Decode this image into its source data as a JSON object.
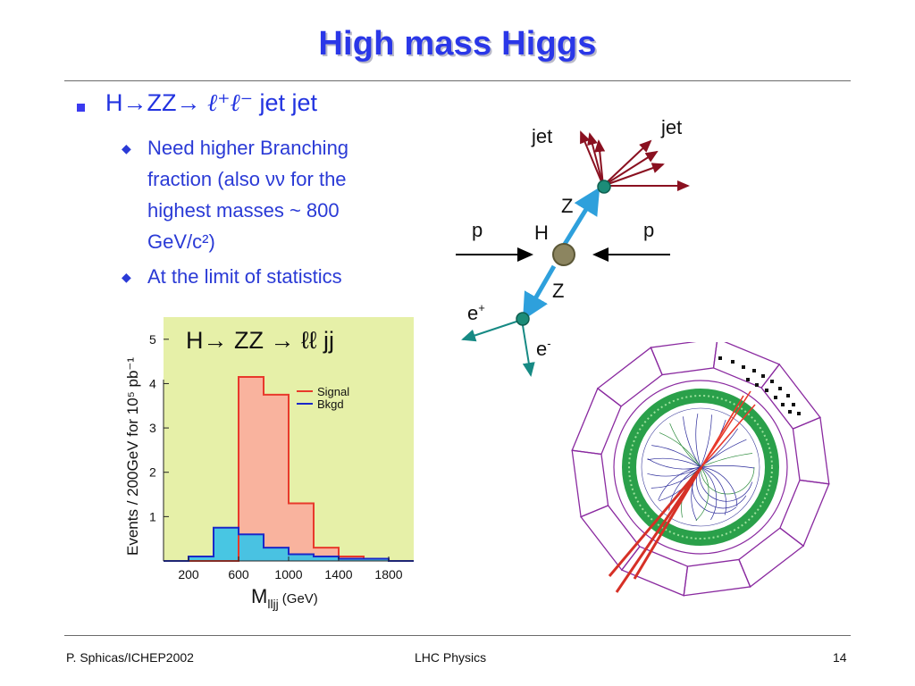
{
  "slide": {
    "title": "High mass Higgs",
    "main_bullet": {
      "prefix": "H",
      "arrow1": "→",
      "zz": "ZZ",
      "arrow2": "→",
      "leptons": "ℓ⁺ℓ⁻",
      "suffix": " jet jet"
    },
    "sub_bullets": [
      {
        "lines": [
          "Need higher Branching",
          "fraction (also νν for the",
          "highest masses ~ 800",
          "GeV/c²)"
        ]
      },
      {
        "lines": [
          "At the limit of statistics"
        ]
      }
    ]
  },
  "feynman": {
    "jet_left": "jet",
    "jet_right": "jet",
    "z_upper": "Z",
    "z_lower": "Z",
    "p_left": "p",
    "p_right": "p",
    "higgs": "H",
    "e_plus": "e",
    "e_plus_sup": "+",
    "e_minus": "e",
    "e_minus_sup": "-"
  },
  "chart_data": {
    "type": "area",
    "title": "H→ ZZ → ℓℓ jj",
    "ylabel": "Events /  200GeV for 10⁵ pb⁻¹",
    "xlabel_main": "M",
    "xlabel_sub": "lljj",
    "xlabel_unit": "(GeV)",
    "xlim": [
      0,
      2000
    ],
    "ylim": [
      0,
      5.5
    ],
    "xticks": [
      200,
      600,
      1000,
      1400,
      1800
    ],
    "yticks": [
      1,
      2,
      3,
      4,
      5
    ],
    "bin_edges": [
      0,
      200,
      400,
      600,
      800,
      1000,
      1200,
      1400,
      1600,
      1800,
      2000
    ],
    "series": [
      {
        "name": "Signal",
        "color": "#e8392b",
        "fill": "#f9b39e",
        "values": [
          0,
          0,
          0,
          4.15,
          3.75,
          1.3,
          0.3,
          0.1,
          0.05,
          0
        ]
      },
      {
        "name": "Bkgd",
        "color": "#1a28c8",
        "fill": "#3fc3e6",
        "values": [
          0,
          0.1,
          0.75,
          0.6,
          0.3,
          0.15,
          0.1,
          0.05,
          0.05,
          0
        ]
      }
    ],
    "legend_position": "top-right",
    "background": "#e6f0a8"
  },
  "footer": {
    "left": "P. Sphicas/ICHEP2002",
    "center": "LHC Physics",
    "page": "14"
  }
}
